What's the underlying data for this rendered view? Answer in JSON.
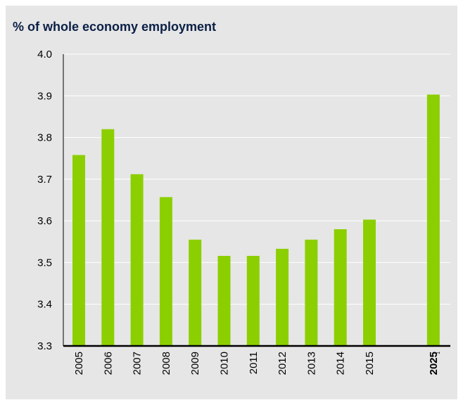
{
  "chart_data": {
    "type": "bar",
    "title": "% of whole economy employment",
    "xlabel": "",
    "ylabel": "",
    "ylim": [
      3.3,
      4.0
    ],
    "yticks": [
      "3.3",
      "3.4",
      "3.5",
      "3.6",
      "3.7",
      "3.8",
      "3.9",
      "4.0"
    ],
    "grid": true,
    "categories": [
      "2005",
      "2006",
      "2007",
      "2008",
      "2009",
      "2010",
      "2011",
      "2012",
      "2013",
      "2014",
      "2015",
      "2025"
    ],
    "values": [
      3.758,
      3.82,
      3.712,
      3.657,
      3.555,
      3.516,
      3.516,
      3.533,
      3.555,
      3.58,
      3.603,
      3.903
    ],
    "highlighted_category": "2025",
    "highlighted_category_note": "1",
    "colors": {
      "bar": "#8ccf00",
      "grid": "#ffffff",
      "axis": "#000000",
      "background": "#e6e6e6",
      "title": "#0b1f46"
    }
  }
}
